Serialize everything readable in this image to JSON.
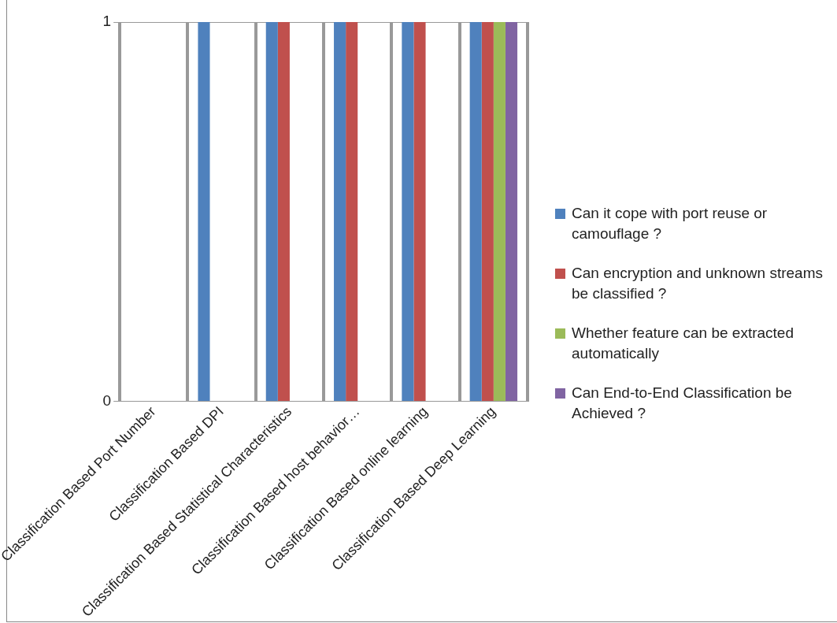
{
  "chart_data": {
    "type": "bar",
    "categories": [
      "Classification Based Port Number",
      "Classification Based DPI",
      "Classification Based Statistical Characteristics",
      "Classification Based host behavior…",
      "Classification Based online learning",
      "Classification Based Deep Learning"
    ],
    "series": [
      {
        "name": "Can it cope with port reuse or camouflage ?",
        "color": "#4f81bd",
        "values": [
          0,
          1,
          1,
          1,
          1,
          1
        ]
      },
      {
        "name": "Can encryption and unknown streams be classified ?",
        "color": "#c0504d",
        "values": [
          0,
          0,
          1,
          1,
          1,
          1
        ]
      },
      {
        "name": "Whether feature can be extracted automatically",
        "color": "#9bbb59",
        "values": [
          0,
          0,
          0,
          0,
          0,
          1
        ]
      },
      {
        "name": "Can End-to-End Classification be Achieved ?",
        "color": "#8064a2",
        "values": [
          0,
          0,
          0,
          0,
          0,
          1
        ]
      }
    ],
    "ylim": [
      0,
      1
    ],
    "yticks": [
      0,
      1
    ],
    "grid": true,
    "legend": "right"
  }
}
